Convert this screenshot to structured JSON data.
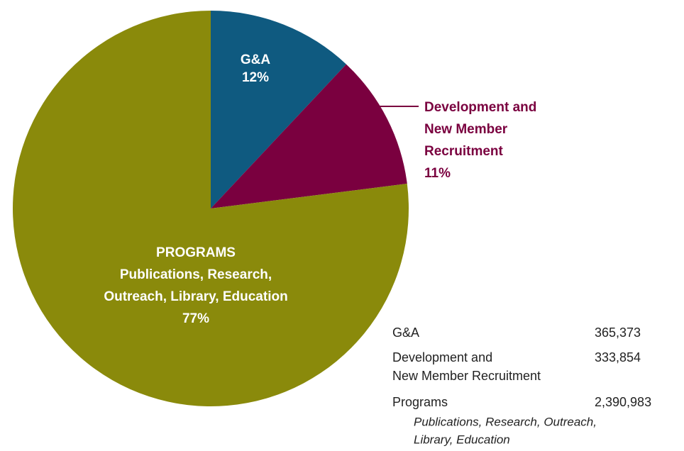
{
  "chart_data": {
    "type": "pie",
    "categories": [
      [
        "G&A"
      ],
      [
        "Development and",
        "New Member",
        "Recruitment"
      ],
      [
        "PROGRAMS",
        "Publications, Research,",
        "Outreach, Library, Education"
      ]
    ],
    "values": [
      12,
      11,
      77
    ],
    "value_labels": [
      "12%",
      "11%",
      "77%"
    ],
    "colors": [
      "#0f5a80",
      "#7a003f",
      "#8a8a0b"
    ]
  },
  "table": {
    "rows": [
      {
        "label": [
          "G&A"
        ],
        "amount": "365,373"
      },
      {
        "label": [
          "Development and",
          "New Member Recruitment"
        ],
        "amount": "333,854"
      },
      {
        "label": [
          "Programs"
        ],
        "amount": "2,390,983",
        "note": [
          "Publications, Research, Outreach,",
          "Library, Education"
        ]
      }
    ]
  }
}
